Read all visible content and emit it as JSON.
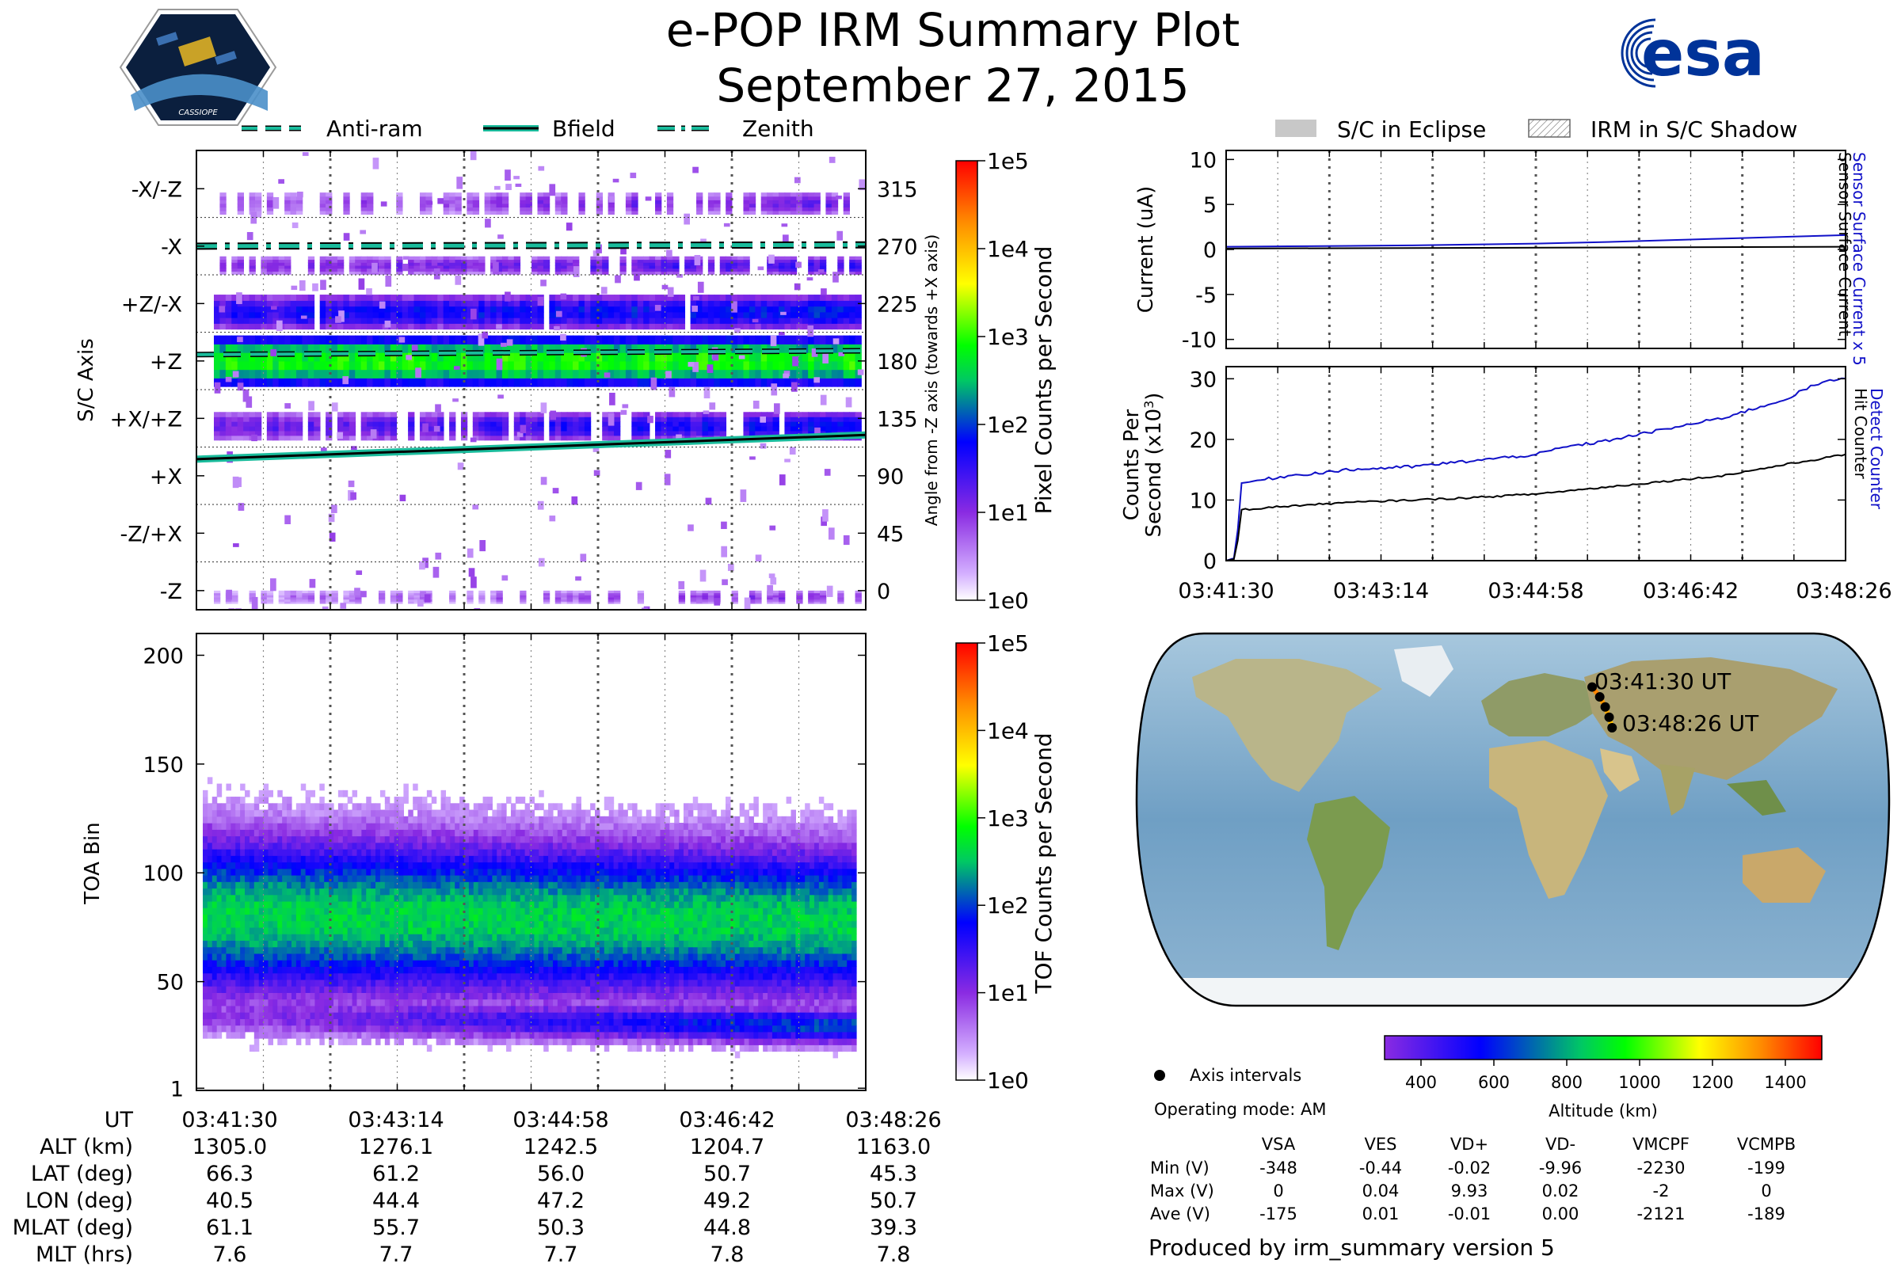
{
  "header": {
    "title": "e-POP IRM Summary Plot",
    "date": "September 27, 2015",
    "mission_logo_text": "CASSIOPE",
    "agency_logo_text": "esa"
  },
  "legends": {
    "left": [
      "Anti-ram",
      "Bfield",
      "Zenith"
    ],
    "right": [
      "S/C in Eclipse",
      "IRM in S/C Shadow"
    ]
  },
  "colors": {
    "antiram": "#1abc9c",
    "zenith": "#1abc9c",
    "bfield": "#000000",
    "sensor_blue": "#1010c8",
    "black": "#000000",
    "eclipse": "#c8c8c8",
    "esa_blue": "#003399"
  },
  "time_ticks": [
    "03:41:30",
    "03:43:14",
    "03:44:58",
    "03:46:42",
    "03:48:26"
  ],
  "current_time_ticks": [
    "03:41:30",
    "03:43:14",
    "03:44:58",
    "03:46:42",
    "03:48:26"
  ],
  "chart_data": [
    {
      "type": "heatmap",
      "id": "angle",
      "ylabel": "S/C Axis",
      "ylabel_right": "Angle from -Z axis (towards +X axis)",
      "axis_labels": [
        "-X/-Z",
        "-X",
        "+Z/-X",
        "+Z",
        "+X/+Z",
        "+X",
        "-Z/+X",
        "-Z"
      ],
      "angle_ticks": [
        315,
        270,
        225,
        180,
        135,
        90,
        45,
        0
      ],
      "ylim": [
        -15,
        345
      ],
      "colorbar": {
        "label": "Pixel Counts per Second",
        "ticks": [
          "1e5",
          "1e4",
          "1e3",
          "1e2",
          "1e1",
          "1e0"
        ],
        "range_log": [
          0,
          5
        ]
      },
      "bands": [
        {
          "lo": 295,
          "hi": 312,
          "log_start": 0.7,
          "log_end": 1.2,
          "fill": 0.55
        },
        {
          "lo": 248,
          "hi": 262,
          "log_start": 0.9,
          "log_end": 1.5,
          "fill": 0.75
        },
        {
          "lo": 205,
          "hi": 232,
          "log_start": 1.6,
          "log_end": 1.9,
          "fill": 0.95
        },
        {
          "lo": 160,
          "hi": 200,
          "log_start": 2.9,
          "log_end": 2.9,
          "fill": 1.0
        },
        {
          "lo": 118,
          "hi": 140,
          "log_start": 1.2,
          "log_end": 1.8,
          "fill": 0.85
        },
        {
          "lo": -10,
          "hi": 0,
          "log_start": 0.5,
          "log_end": 1.0,
          "fill": 0.5
        }
      ],
      "lines": {
        "antiram": [
          [
            0,
            185
          ],
          [
            1,
            188
          ]
        ],
        "bfield": [
          [
            0,
            103
          ],
          [
            1,
            122
          ]
        ],
        "zenith": [
          [
            0,
            270
          ],
          [
            1,
            271
          ]
        ]
      }
    },
    {
      "type": "heatmap",
      "id": "toa",
      "ylabel": "TOA Bin",
      "yticks": [
        1,
        50,
        100,
        150,
        200
      ],
      "ylim": [
        0,
        210
      ],
      "colorbar": {
        "label": "TOF Counts per Second",
        "ticks": [
          "1e5",
          "1e4",
          "1e3",
          "1e2",
          "1e1",
          "1e0"
        ],
        "range_log": [
          0,
          5
        ]
      },
      "bands": [
        {
          "center_start": 79,
          "center_end": 76,
          "halfwidth_start": 44,
          "halfwidth_end": 40,
          "peak_log": 2.6
        },
        {
          "center_start": 33,
          "center_end": 28,
          "halfwidth_start": 12,
          "halfwidth_end": 10,
          "peak_log_start": 0.9,
          "peak_log_end": 2.1
        }
      ]
    },
    {
      "type": "line",
      "id": "current",
      "ylabel": "Current (uA)",
      "ylabel_right_blue": "Sensor Surface Current x 5",
      "ylabel_right_black": "Sensor Surface Current",
      "yticks": [
        10,
        5,
        0,
        -5,
        -10
      ],
      "ylim": [
        -11,
        11
      ],
      "series": [
        {
          "name": "Sensor Surface Current x 5",
          "color": "blue",
          "x": [
            0,
            0.1,
            0.2,
            0.3,
            0.4,
            0.5,
            0.6,
            0.7,
            0.8,
            0.9,
            1.0
          ],
          "values": [
            0.3,
            0.35,
            0.4,
            0.45,
            0.55,
            0.65,
            0.8,
            1.0,
            1.2,
            1.4,
            1.6
          ]
        },
        {
          "name": "Sensor Surface Current",
          "color": "black",
          "x": [
            0,
            1.0
          ],
          "values": [
            0.1,
            0.3
          ]
        }
      ]
    },
    {
      "type": "line",
      "id": "counts",
      "ylabel": "Counts Per Second (x10^3)",
      "ylabel_line1": "Counts Per",
      "ylabel_line2": "Second (x10",
      "ylabel_exp": "3",
      "ylabel_close": ")",
      "ylabel_right_blue": "Detect Counter",
      "ylabel_right_black": "Hit Counter",
      "yticks": [
        30,
        20,
        10,
        0
      ],
      "ylim": [
        0,
        32
      ],
      "series": [
        {
          "name": "Detect Counter",
          "color": "blue",
          "x": [
            0,
            0.015,
            0.025,
            0.1,
            0.2,
            0.3,
            0.4,
            0.5,
            0.55,
            0.6,
            0.7,
            0.8,
            0.9,
            0.95,
            1.0
          ],
          "values": [
            0,
            0.5,
            12.8,
            14.0,
            15.0,
            15.5,
            16.5,
            17.5,
            18.8,
            19.5,
            21.5,
            23.5,
            26.5,
            29.0,
            30.2
          ]
        },
        {
          "name": "Hit Counter",
          "color": "black",
          "x": [
            0,
            0.015,
            0.025,
            0.1,
            0.2,
            0.3,
            0.4,
            0.5,
            0.6,
            0.7,
            0.8,
            0.9,
            1.0
          ],
          "values": [
            0,
            0.3,
            8.4,
            9.0,
            9.6,
            10.0,
            10.4,
            11.0,
            12.0,
            13.0,
            14.0,
            15.8,
            17.5
          ]
        }
      ]
    }
  ],
  "ephemeris": {
    "rows": [
      {
        "label": "UT",
        "values": [
          "03:41:30",
          "03:43:14",
          "03:44:58",
          "03:46:42",
          "03:48:26"
        ]
      },
      {
        "label": "ALT (km)",
        "values": [
          "1305.0",
          "1276.1",
          "1242.5",
          "1204.7",
          "1163.0"
        ]
      },
      {
        "label": "LAT (deg)",
        "values": [
          "66.3",
          "61.2",
          "56.0",
          "50.7",
          "45.3"
        ]
      },
      {
        "label": "LON (deg)",
        "values": [
          "40.5",
          "44.4",
          "47.2",
          "49.2",
          "50.7"
        ]
      },
      {
        "label": "MLAT (deg)",
        "values": [
          "61.1",
          "55.7",
          "50.3",
          "44.8",
          "39.3"
        ]
      },
      {
        "label": "MLT (hrs)",
        "values": [
          "7.6",
          "7.7",
          "7.7",
          "7.8",
          "7.8"
        ]
      }
    ]
  },
  "map": {
    "start_label": "03:41:30 UT",
    "end_label": "03:48:26 UT",
    "track": {
      "lat": [
        66.3,
        61.2,
        56.0,
        50.7,
        45.3
      ],
      "lon": [
        40.5,
        44.4,
        47.2,
        49.2,
        50.7
      ]
    },
    "track_altitudes": [
      1305,
      1276,
      1242,
      1205,
      1163
    ],
    "altitude_colorbar": {
      "label": "Altitude (km)",
      "ticks": [
        "400",
        "600",
        "800",
        "1000",
        "1200",
        "1400"
      ],
      "range": [
        300,
        1500
      ]
    }
  },
  "info": {
    "axis_intervals_label": "Axis intervals",
    "operating_mode": "Operating mode: AM",
    "produced_by": "Produced by irm_summary version 5"
  },
  "voltages": {
    "columns": [
      "VSA",
      "VES",
      "VD+",
      "VD-",
      "VMCPF",
      "VCMPB"
    ],
    "rows": [
      {
        "label": "Min (V)",
        "values": [
          "-348",
          "-0.44",
          "-0.02",
          "-9.96",
          "-2230",
          "-199"
        ]
      },
      {
        "label": "Max (V)",
        "values": [
          "0",
          "0.04",
          "9.93",
          "0.02",
          "-2",
          "0"
        ]
      },
      {
        "label": "Ave (V)",
        "values": [
          "-175",
          "0.01",
          "-0.01",
          "0.00",
          "-2121",
          "-189"
        ]
      }
    ]
  }
}
